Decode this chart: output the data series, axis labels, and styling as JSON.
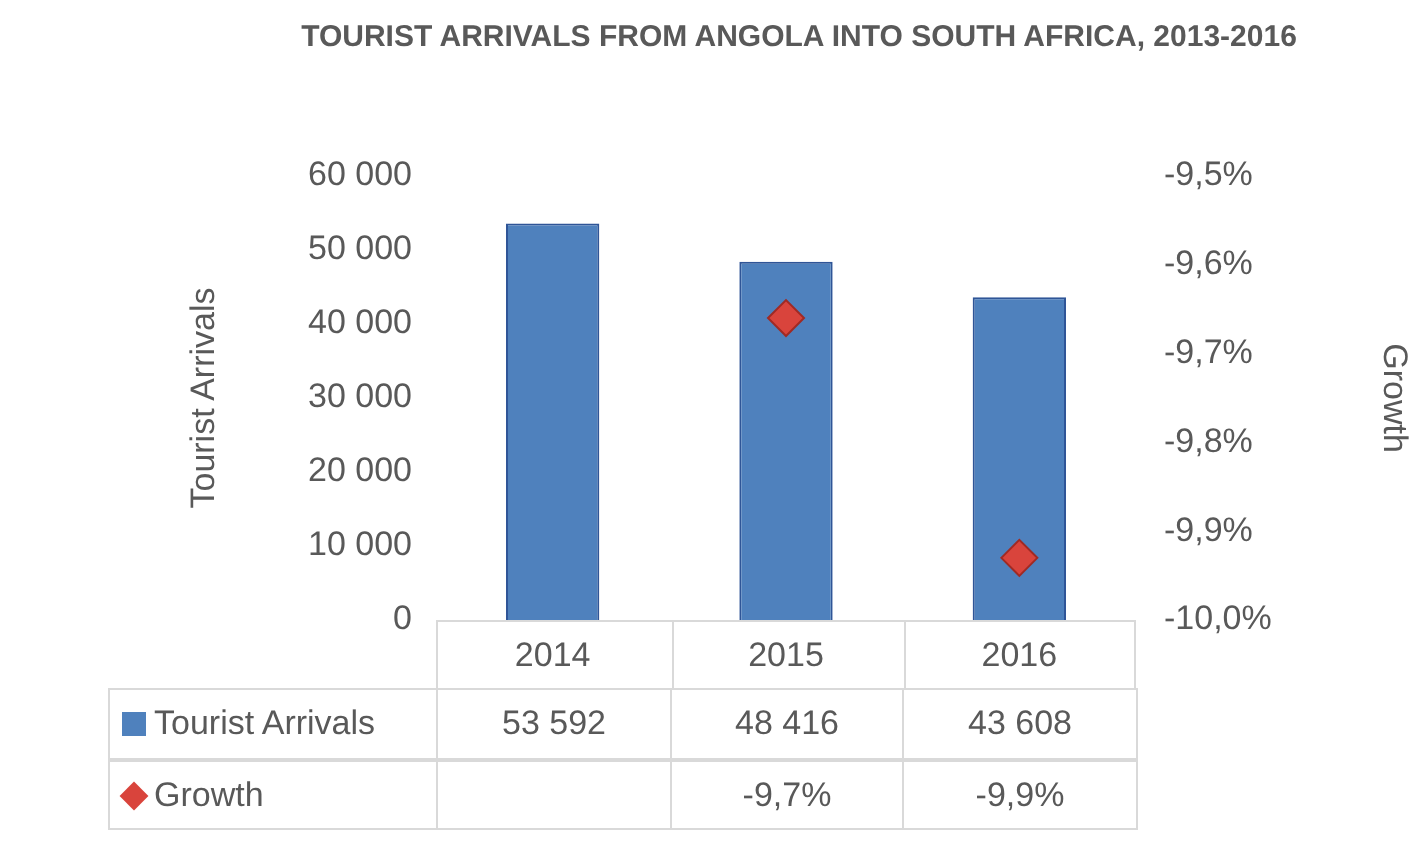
{
  "chart_data": {
    "type": "bar",
    "title": "TOURIST ARRIVALS FROM ANGOLA INTO SOUTH AFRICA, 2013-2016",
    "categories": [
      "2014",
      "2015",
      "2016"
    ],
    "series": [
      {
        "name": "Tourist Arrivals",
        "color": "#4f81bd",
        "values": [
          53592,
          48416,
          43608
        ],
        "value_labels": [
          "53 592",
          "48 416",
          "43 608"
        ]
      },
      {
        "name": "Growth",
        "type": "scatter",
        "axis": "y2",
        "marker": "diamond",
        "color": "#d9443c",
        "values": [
          null,
          -9.66,
          -9.93
        ],
        "value_labels": [
          null,
          "-9,7%",
          "-9,9%"
        ]
      }
    ],
    "ylabel": "Tourist Arrivals",
    "y2label": "Growth",
    "ylim": [
      0,
      60000
    ],
    "yticks": [
      0,
      {
        "value": 10000,
        "label": "10 000"
      },
      {
        "value": 20000,
        "label": "20 000"
      },
      {
        "value": 30000,
        "label": "30 000"
      },
      {
        "value": 40000,
        "label": "40 000"
      },
      {
        "value": 50000,
        "label": "50 000"
      },
      {
        "value": 60000,
        "label": "60 000"
      }
    ],
    "y2lim": [
      -10,
      -9.5
    ],
    "y2ticks": [
      {
        "value": -10,
        "label": "-10,0%"
      },
      {
        "value": -9.9,
        "label": "-9,9%"
      },
      {
        "value": -9.8,
        "label": "-9,8%"
      },
      {
        "value": -9.7,
        "label": "-9,7%"
      },
      {
        "value": -9.6,
        "label": "-9,6%"
      },
      {
        "value": -9.5,
        "label": "-9,5%"
      }
    ],
    "legend": "bottom"
  }
}
